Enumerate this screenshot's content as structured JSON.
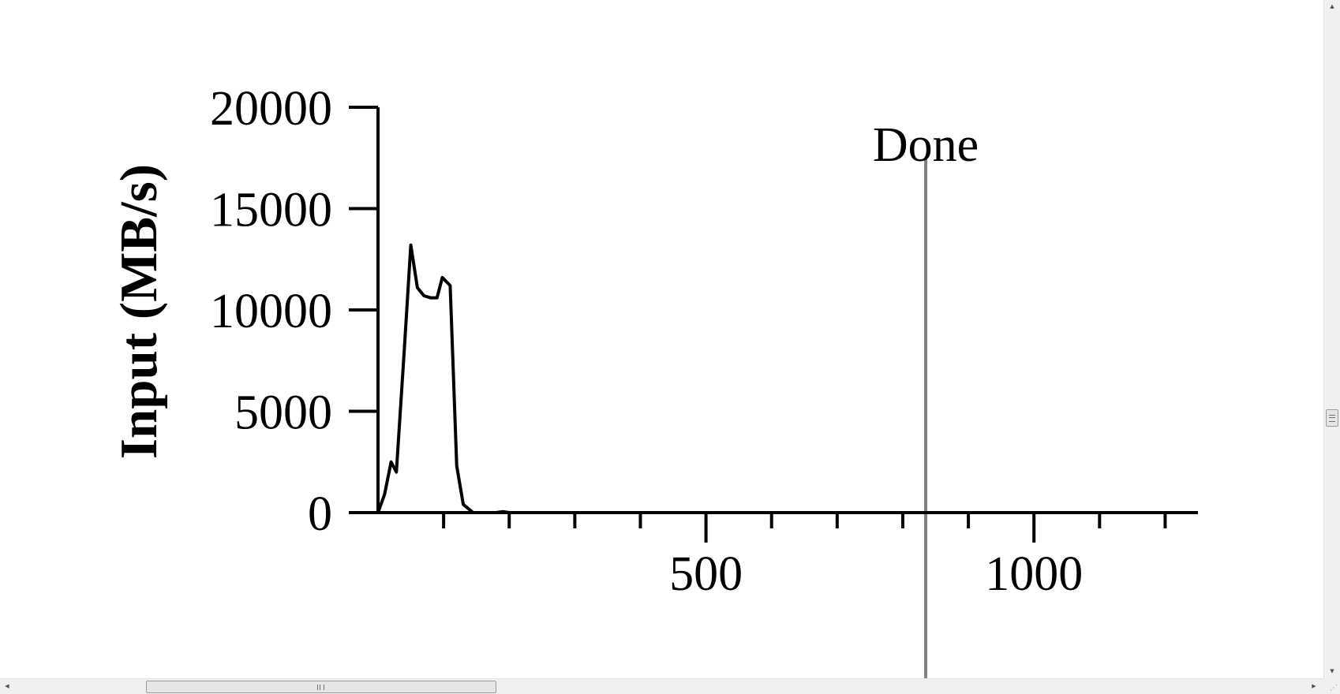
{
  "chart_data": {
    "type": "line",
    "title": "",
    "ylabel": "Input (MB/s)",
    "xlabel": "",
    "xlim": [
      0,
      1250
    ],
    "ylim": [
      0,
      20000
    ],
    "x_ticks": [
      100,
      200,
      300,
      400,
      500,
      600,
      700,
      800,
      900,
      1000,
      1100,
      1200
    ],
    "x_tick_labels": [
      {
        "value": 500,
        "label": "500"
      },
      {
        "value": 1000,
        "label": "1000"
      }
    ],
    "y_ticks": [
      0,
      5000,
      10000,
      15000,
      20000
    ],
    "y_tick_labels": [
      "0",
      "5000",
      "10000",
      "15000",
      "20000"
    ],
    "grid": false,
    "series": [
      {
        "x": [
          0,
          10,
          20,
          28,
          40,
          50,
          60,
          70,
          80,
          90,
          98,
          110,
          120,
          130,
          145,
          160,
          180,
          190,
          200,
          250,
          300,
          400,
          500,
          600,
          700,
          800,
          900,
          1000,
          1100,
          1250
        ],
        "y": [
          0,
          900,
          2500,
          2000,
          8000,
          13200,
          11100,
          10700,
          10600,
          10600,
          11600,
          11200,
          2300,
          400,
          0,
          0,
          0,
          50,
          0,
          0,
          0,
          0,
          0,
          0,
          0,
          0,
          0,
          0,
          0,
          0
        ],
        "color": "#000000"
      }
    ],
    "annotations": [
      {
        "type": "vline",
        "x": 835,
        "label": "Done",
        "color": "#808080"
      }
    ]
  },
  "scrollbars": {
    "up_arrow": "▲",
    "down_arrow": "▼",
    "left_arrow": "◀",
    "right_arrow": "▶",
    "resize_grip": "⋰"
  }
}
